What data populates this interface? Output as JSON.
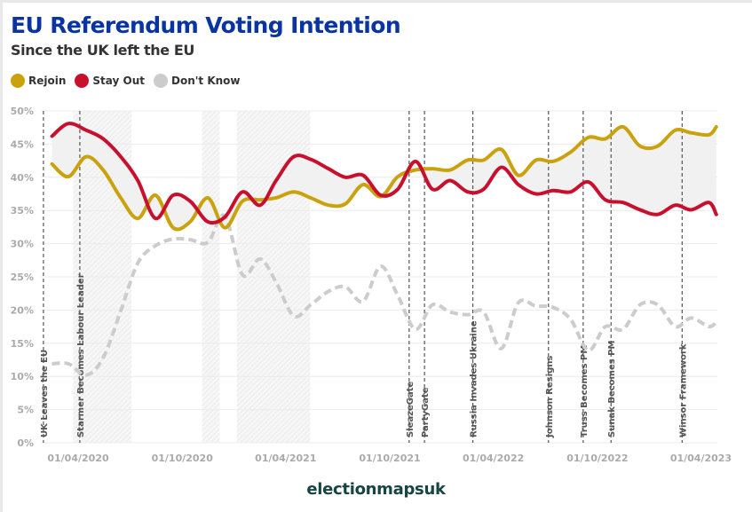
{
  "header": {
    "title": "EU Referendum Voting Intention",
    "subtitle": "Since the UK left the EU"
  },
  "footer": {
    "brand": "electionmapsuk"
  },
  "colors": {
    "rejoin": "#c9a20e",
    "stay_out": "#c8102e",
    "dont_know": "#cccccc",
    "title": "#0a35a0",
    "gap_fill": "#f1f1f1"
  },
  "chart_data": {
    "type": "line",
    "title": "EU Referendum Voting Intention",
    "subtitle": "Since the UK left the EU",
    "ylim": [
      0,
      50
    ],
    "y_ticks": [
      "0%",
      "5%",
      "10%",
      "15%",
      "20%",
      "25%",
      "30%",
      "35%",
      "40%",
      "45%",
      "50%"
    ],
    "x_range": [
      "2020-01-31",
      "2023-04-30"
    ],
    "x_ticks": [
      {
        "date": "2020-04-01",
        "label": "01/04/2020"
      },
      {
        "date": "2020-10-01",
        "label": "01/10/2020"
      },
      {
        "date": "2021-04-01",
        "label": "01/04/2021"
      },
      {
        "date": "2021-10-01",
        "label": "01/10/2021"
      },
      {
        "date": "2022-04-01",
        "label": "01/04/2022"
      },
      {
        "date": "2022-10-01",
        "label": "01/10/2022"
      },
      {
        "date": "2023-04-01",
        "label": "01/04/2023"
      }
    ],
    "grid": true,
    "legend_placement": "top-left",
    "x": [
      "2020-02-15",
      "2020-03-15",
      "2020-04-15",
      "2020-05-15",
      "2020-06-15",
      "2020-07-15",
      "2020-08-15",
      "2020-09-15",
      "2020-10-15",
      "2020-11-15",
      "2020-12-15",
      "2021-01-15",
      "2021-02-15",
      "2021-03-15",
      "2021-04-15",
      "2021-05-15",
      "2021-06-15",
      "2021-07-15",
      "2021-08-15",
      "2021-09-15",
      "2021-10-15",
      "2021-11-15",
      "2021-12-15",
      "2022-01-15",
      "2022-02-15",
      "2022-03-15",
      "2022-04-15",
      "2022-05-15",
      "2022-06-15",
      "2022-07-15",
      "2022-08-15",
      "2022-09-15",
      "2022-10-15",
      "2022-11-15",
      "2022-12-15",
      "2023-01-15",
      "2023-02-15",
      "2023-03-15",
      "2023-04-15",
      "2023-04-28"
    ],
    "series": [
      {
        "name": "Rejoin",
        "color": "#c9a20e",
        "style": "solid",
        "values": [
          42.0,
          40.1,
          43.1,
          41.1,
          36.9,
          33.8,
          37.3,
          32.4,
          33.3,
          36.9,
          32.4,
          36.4,
          36.6,
          36.9,
          37.8,
          36.9,
          35.8,
          36.0,
          38.9,
          37.1,
          40.1,
          41.1,
          41.3,
          41.1,
          42.6,
          42.6,
          44.2,
          40.3,
          42.6,
          42.4,
          43.8,
          46.0,
          45.8,
          47.6,
          44.7,
          44.7,
          47.1,
          46.7,
          46.4,
          47.6
        ]
      },
      {
        "name": "Stay Out",
        "color": "#c8102e",
        "style": "solid",
        "values": [
          46.2,
          48.1,
          47.1,
          45.8,
          43.1,
          39.5,
          33.8,
          37.3,
          36.4,
          33.3,
          34.0,
          37.8,
          35.8,
          39.5,
          43.1,
          42.7,
          41.3,
          40.0,
          40.3,
          37.3,
          38.2,
          42.4,
          38.2,
          39.5,
          37.8,
          38.2,
          41.5,
          38.9,
          37.5,
          38.0,
          37.8,
          39.3,
          36.6,
          36.2,
          35.1,
          34.4,
          35.8,
          35.1,
          36.2,
          34.4
        ]
      },
      {
        "name": "Don't Know",
        "color": "#cccccc",
        "style": "dashed",
        "values": [
          11.9,
          11.9,
          10.2,
          12.8,
          19.9,
          27.1,
          29.7,
          30.7,
          30.6,
          30.2,
          34.2,
          25.3,
          27.7,
          24.2,
          19.1,
          20.8,
          22.8,
          23.5,
          21.3,
          26.6,
          22.2,
          17.1,
          20.8,
          19.7,
          19.3,
          19.7,
          14.2,
          21.1,
          20.6,
          20.4,
          18.6,
          13.9,
          17.5,
          17.1,
          20.8,
          20.8,
          17.5,
          18.8,
          17.5,
          18.2
        ]
      }
    ],
    "events": [
      {
        "date": "2020-01-31",
        "label": "UK Leaves the EU"
      },
      {
        "date": "2020-04-04",
        "label": "Starmer Becomes Labour Leader"
      },
      {
        "date": "2021-11-04",
        "label": "SleazeGate"
      },
      {
        "date": "2021-12-01",
        "label": "PartyGate"
      },
      {
        "date": "2022-02-24",
        "label": "Russia Invades Ukraine"
      },
      {
        "date": "2022-07-07",
        "label": "Johnson Resigns"
      },
      {
        "date": "2022-09-06",
        "label": "Truss Becomes PM"
      },
      {
        "date": "2022-10-25",
        "label": "Sunak Becomes PM"
      },
      {
        "date": "2023-02-27",
        "label": "Winsor Framework"
      }
    ],
    "shaded_periods": [
      {
        "start": "2020-03-23",
        "end": "2020-07-04"
      },
      {
        "start": "2020-11-05",
        "end": "2020-12-06"
      },
      {
        "start": "2021-01-05",
        "end": "2021-05-14"
      }
    ]
  }
}
